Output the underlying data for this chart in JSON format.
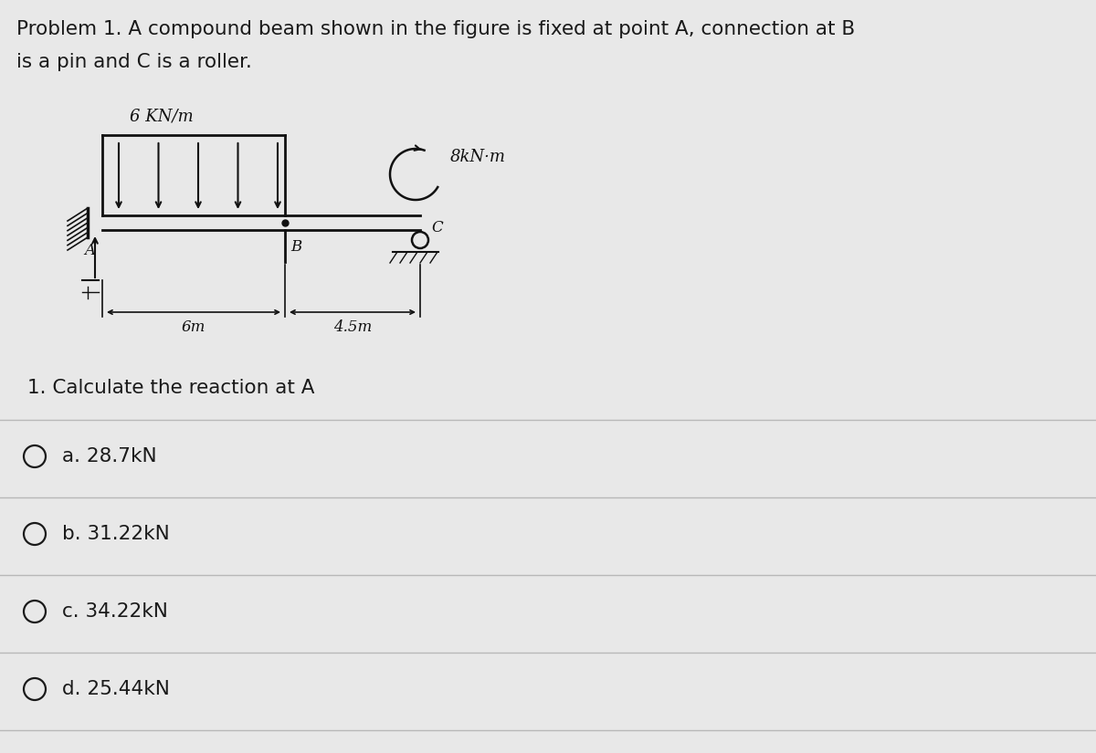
{
  "title_line1": "Problem 1. A compound beam shown in the figure is fixed at point A, connection at B",
  "title_line2": "is a pin and C is a roller.",
  "question": "1. Calculate the reaction at A",
  "options": [
    "a. 28.7kN",
    "b. 31.22kN",
    "c. 34.22kN",
    "d. 25.44kN"
  ],
  "bg_color": "#e8e8e8",
  "text_color": "#1a1a1a",
  "diagram_load_label": "6 KN/m",
  "diagram_moment_label": "8kN·m",
  "diagram_dim1": "6m",
  "diagram_dim2": "4.5m",
  "diagram_A": "A",
  "diagram_B": "B",
  "diagram_C": "C"
}
